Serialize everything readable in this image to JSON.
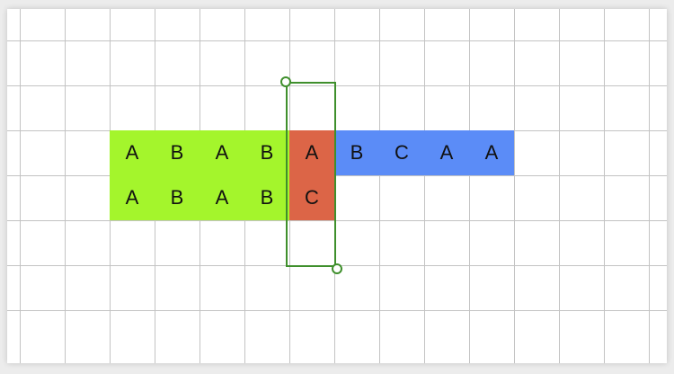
{
  "colors": {
    "prefix_match": "#a4f52c",
    "mismatch": "#dc6547",
    "remaining": "#5b8cf7",
    "selection": "#3f8f2c",
    "grid": "#c3c3c3"
  },
  "rows": {
    "text": [
      "A",
      "B",
      "A",
      "B",
      "A",
      "B",
      "C",
      "A",
      "A"
    ],
    "pattern": [
      "A",
      "B",
      "A",
      "B",
      "C"
    ]
  }
}
